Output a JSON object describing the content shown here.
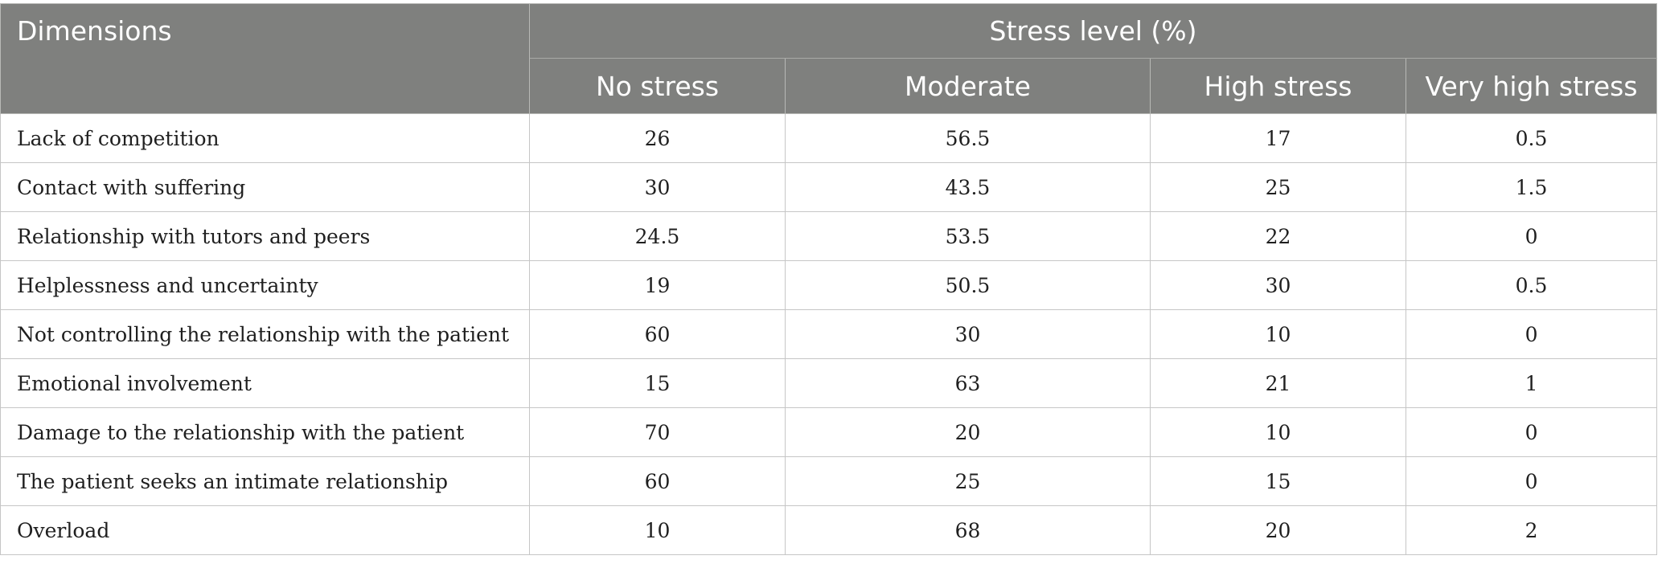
{
  "table": {
    "header": {
      "dimensions": "Dimensions",
      "group": "Stress level (%)",
      "levels": [
        "No stress",
        "Moderate",
        "High stress",
        "Very high stress"
      ]
    },
    "rows": [
      {
        "dimension": "Lack of competition",
        "values": [
          "26",
          "56.5",
          "17",
          "0.5"
        ]
      },
      {
        "dimension": "Contact with suffering",
        "values": [
          "30",
          "43.5",
          "25",
          "1.5"
        ]
      },
      {
        "dimension": "Relationship with tutors and peers",
        "values": [
          "24.5",
          "53.5",
          "22",
          "0"
        ]
      },
      {
        "dimension": "Helplessness and uncertainty",
        "values": [
          "19",
          "50.5",
          "30",
          "0.5"
        ]
      },
      {
        "dimension": "Not controlling the relationship with the patient",
        "values": [
          "60",
          "30",
          "10",
          "0"
        ]
      },
      {
        "dimension": "Emotional involvement",
        "values": [
          "15",
          "63",
          "21",
          "1"
        ]
      },
      {
        "dimension": "Damage to the relationship with the patient",
        "values": [
          "70",
          "20",
          "10",
          "0"
        ]
      },
      {
        "dimension": "The patient seeks an intimate relationship",
        "values": [
          "60",
          "25",
          "15",
          "0"
        ]
      },
      {
        "dimension": "Overload",
        "values": [
          "10",
          "68",
          "20",
          "2"
        ]
      }
    ]
  }
}
